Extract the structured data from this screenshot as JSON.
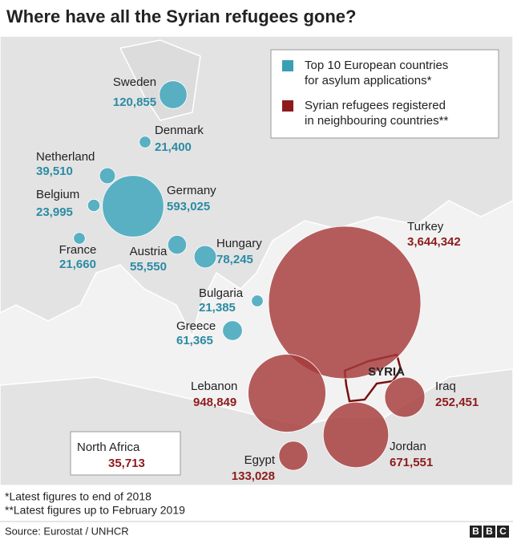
{
  "title": "Where have all the Syrian refugees gone?",
  "legend": [
    {
      "lines": [
        "Top 10 European countries",
        "for asylum applications*"
      ],
      "color": "#3a9fb5"
    },
    {
      "lines": [
        "Syrian refugees registered",
        "in neighbouring countries**"
      ],
      "color": "#8e1b1b"
    }
  ],
  "countries": [
    {
      "name": "Sweden",
      "value": 120855,
      "value_label": "120,855",
      "group": 0
    },
    {
      "name": "Denmark",
      "value": 21400,
      "value_label": "21,400",
      "group": 0
    },
    {
      "name": "Netherland",
      "value": 39510,
      "value_label": "39,510",
      "group": 0
    },
    {
      "name": "Belgium",
      "value": 23995,
      "value_label": "23,995",
      "group": 0
    },
    {
      "name": "Germany",
      "value": 593025,
      "value_label": "593,025",
      "group": 0
    },
    {
      "name": "France",
      "value": 21660,
      "value_label": "21,660",
      "group": 0
    },
    {
      "name": "Austria",
      "value": 55550,
      "value_label": "55,550",
      "group": 0
    },
    {
      "name": "Hungary",
      "value": 78245,
      "value_label": "78,245",
      "group": 0
    },
    {
      "name": "Bulgaria",
      "value": 21385,
      "value_label": "21,385",
      "group": 0
    },
    {
      "name": "Greece",
      "value": 61365,
      "value_label": "61,365",
      "group": 0
    },
    {
      "name": "Turkey",
      "value": 3644342,
      "value_label": "3,644,342",
      "group": 1
    },
    {
      "name": "Lebanon",
      "value": 948849,
      "value_label": "948,849",
      "group": 1
    },
    {
      "name": "Iraq",
      "value": 252451,
      "value_label": "252,451",
      "group": 1
    },
    {
      "name": "Jordan",
      "value": 671551,
      "value_label": "671,551",
      "group": 1
    },
    {
      "name": "Egypt",
      "value": 133028,
      "value_label": "133,028",
      "group": 1
    },
    {
      "name": "North Africa",
      "value": 35713,
      "value_label": "35,713",
      "group": 1
    }
  ],
  "syria_label": "SYRIA",
  "footnotes": [
    "*Latest figures to end of 2018",
    "**Latest figures up to February 2019"
  ],
  "source": "Source: Eurostat / UNHCR",
  "logo": [
    "B",
    "B",
    "C"
  ]
}
